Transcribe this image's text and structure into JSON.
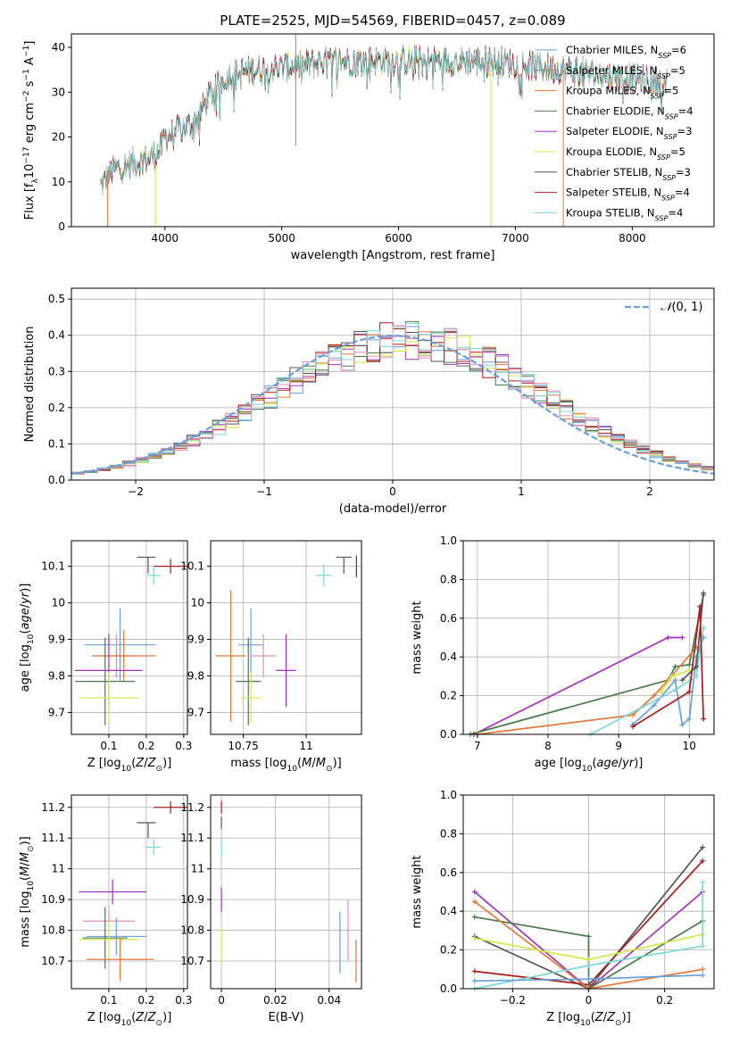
{
  "figure_title": "PLATE=2525, MJD=54569, FIBERID=0457, z=0.089",
  "colors": {
    "ch_miles": "#6a9fd8",
    "sa_miles": "#8a8a8a",
    "kr_miles": "#e07a3a",
    "ch_elodie": "#4c7a4c",
    "sa_elodie": "#9e35b5",
    "kr_elodie": "#d4e84a",
    "ch_stelib": "#555555",
    "sa_stelib": "#a51c1c",
    "kr_stelib": "#7fd6d6",
    "pink": "#e58fb6",
    "gaussian": "#6a9fd8"
  },
  "chart_data": [
    {
      "id": "spectrum",
      "type": "line",
      "xlabel": "wavelength [Angstrom, rest frame]",
      "ylabel": "Flux [f_λ10^-17 erg cm^-2 s^-1 A^-1]",
      "xlim": [
        3200,
        8700
      ],
      "ylim": [
        0,
        43
      ],
      "xticks": [
        4000,
        5000,
        6000,
        7000,
        8000
      ],
      "yticks": [
        0,
        10,
        20,
        30,
        40
      ],
      "grid": false,
      "legend_position": "top-right",
      "continuum": [
        [
          3450,
          9
        ],
        [
          3550,
          12.5
        ],
        [
          3700,
          14
        ],
        [
          3850,
          15
        ],
        [
          3960,
          17
        ],
        [
          4000,
          20
        ],
        [
          4150,
          22
        ],
        [
          4250,
          23
        ],
        [
          4400,
          30
        ],
        [
          4550,
          34
        ],
        [
          4750,
          35
        ],
        [
          5000,
          35.5
        ],
        [
          5200,
          36
        ],
        [
          5400,
          37
        ],
        [
          5600,
          37
        ],
        [
          5900,
          37
        ],
        [
          6200,
          37
        ],
        [
          6500,
          37
        ],
        [
          6800,
          37
        ],
        [
          7100,
          36
        ],
        [
          7400,
          35
        ],
        [
          7700,
          34
        ],
        [
          8000,
          33
        ],
        [
          8300,
          32
        ]
      ],
      "series": [
        {
          "name": "Chabrier MILES, N_SSP=6",
          "color_key": "ch_miles"
        },
        {
          "name": "Salpeter MILES, N_SSP=5",
          "color_key": "sa_miles"
        },
        {
          "name": "Kroupa MILES, N_SSP=5",
          "color_key": "kr_miles"
        },
        {
          "name": "Chabrier ELODIE, N_SSP=4",
          "color_key": "ch_elodie"
        },
        {
          "name": "Salpeter ELODIE, N_SSP=3",
          "color_key": "sa_elodie"
        },
        {
          "name": "Kroupa ELODIE, N_SSP=5",
          "color_key": "kr_elodie"
        },
        {
          "name": "Chabrier STELIB, N_SSP=3",
          "color_key": "ch_stelib"
        },
        {
          "name": "Salpeter STELIB, N_SSP=4",
          "color_key": "sa_stelib"
        },
        {
          "name": "Kroupa STELIB, N_SSP=4",
          "color_key": "kr_stelib"
        }
      ],
      "spikes": [
        {
          "x": 3510,
          "y0": 0,
          "y1": 12,
          "color_key": "kr_miles"
        },
        {
          "x": 3920,
          "y0": 0,
          "y1": 14,
          "color_key": "kr_elodie"
        },
        {
          "x": 5120,
          "y0": 18,
          "y1": 43,
          "color_key": "sa_miles"
        },
        {
          "x": 6790,
          "y0": 0,
          "y1": 37,
          "color_key": "kr_elodie"
        },
        {
          "x": 7410,
          "y0": 0,
          "y1": 35,
          "color_key": "kr_miles"
        }
      ]
    },
    {
      "id": "residuals",
      "type": "histogram",
      "xlabel": "(data-model)/error",
      "ylabel": "Normed distribution",
      "xlim": [
        -2.5,
        2.5
      ],
      "ylim": [
        0,
        0.53
      ],
      "xticks": [
        -2,
        -1,
        0,
        1,
        2
      ],
      "yticks": [
        0.0,
        0.1,
        0.2,
        0.3,
        0.4,
        0.5
      ],
      "grid": true,
      "legend_position": "top-right",
      "gaussian_label": "N(0,1)",
      "bins": 50,
      "series_color_keys": [
        "ch_miles",
        "kr_miles",
        "ch_elodie",
        "sa_elodie",
        "kr_elodie",
        "ch_stelib",
        "sa_stelib",
        "kr_stelib",
        "pink"
      ]
    },
    {
      "id": "age_vs_Z",
      "type": "errorbar",
      "xlabel": "Z [log10(Z/Z_sun)]",
      "ylabel": "age [log10(age/yr)]",
      "xlim": [
        0.0,
        0.31
      ],
      "ylim": [
        9.64,
        10.17
      ],
      "xticks": [
        0.1,
        0.2,
        0.3
      ],
      "yticks": [
        9.7,
        9.8,
        9.9,
        10.0,
        10.1
      ],
      "grid": true,
      "points": [
        {
          "x": 0.265,
          "y": 10.1,
          "xerr": 0.045,
          "yerr": 0.02,
          "color_key": "sa_stelib"
        },
        {
          "x": 0.205,
          "y": 10.125,
          "xerr": 0.0,
          "yerr": 0.0,
          "xlo": 0.175,
          "xhi": 0.225,
          "ylo": 10.08,
          "yhi": 10.125,
          "color_key": "ch_stelib"
        },
        {
          "x": 0.22,
          "y": 10.075,
          "xerr": 0.018,
          "yerr": 0.025,
          "color_key": "kr_stelib"
        },
        {
          "x": 0.13,
          "y": 9.885,
          "xerr": 0.095,
          "yerr": 0.1,
          "color_key": "ch_miles"
        },
        {
          "x": 0.12,
          "y": 9.855,
          "xerr": 0.05,
          "yerr": 0.06,
          "color_key": "pink"
        },
        {
          "x": 0.14,
          "y": 9.855,
          "xerr": 0.085,
          "yerr": 0.07,
          "color_key": "kr_miles"
        },
        {
          "x": 0.1,
          "y": 9.815,
          "xerr": 0.09,
          "yerr": 0.1,
          "color_key": "sa_elodie"
        },
        {
          "x": 0.09,
          "y": 9.785,
          "xerr": 0.08,
          "yerr": 0.12,
          "color_key": "ch_elodie"
        },
        {
          "x": 0.1,
          "y": 9.74,
          "xerr": 0.08,
          "yerr": 0.07,
          "color_key": "kr_elodie"
        }
      ]
    },
    {
      "id": "age_vs_mass",
      "type": "errorbar",
      "xlabel": "mass [log10(M/M_sun)]",
      "ylabel": "",
      "xlim": [
        10.62,
        11.22
      ],
      "ylim": [
        9.64,
        10.17
      ],
      "xticks": [
        10.75,
        11.0
      ],
      "yticks": [
        9.7,
        9.8,
        9.9,
        10.0,
        10.1
      ],
      "grid": true,
      "points": [
        {
          "x": 11.2,
          "y": 10.1,
          "xerr": 0.0,
          "yerr": 0.03,
          "color_key": "sa_stelib"
        },
        {
          "x": 11.15,
          "y": 10.125,
          "xerr": 0.03,
          "yerr": 0.0,
          "ylo": 10.08,
          "yhi": 10.125,
          "color_key": "ch_stelib"
        },
        {
          "x": 11.07,
          "y": 10.075,
          "xerr": 0.03,
          "yerr": 0.03,
          "color_key": "kr_stelib"
        },
        {
          "x": 10.78,
          "y": 9.885,
          "xerr": 0.05,
          "yerr": 0.1,
          "color_key": "ch_miles"
        },
        {
          "x": 10.83,
          "y": 9.855,
          "xerr": 0.05,
          "yerr": 0.06,
          "color_key": "pink"
        },
        {
          "x": 10.7,
          "y": 9.855,
          "xerr": 0.06,
          "yerr": 0.18,
          "color_key": "kr_miles"
        },
        {
          "x": 10.92,
          "y": 9.815,
          "xerr": 0.04,
          "yerr": 0.1,
          "color_key": "sa_elodie"
        },
        {
          "x": 10.77,
          "y": 9.785,
          "xerr": 0.05,
          "yerr": 0.12,
          "color_key": "ch_elodie"
        },
        {
          "x": 10.78,
          "y": 9.74,
          "xerr": 0.04,
          "yerr": 0.07,
          "color_key": "kr_elodie"
        }
      ]
    },
    {
      "id": "mw_vs_age",
      "type": "line",
      "xlabel": "age [log10(age/yr)]",
      "ylabel": "mass weight",
      "xlim": [
        6.8,
        10.35
      ],
      "ylim": [
        0,
        1.0
      ],
      "xticks": [
        7,
        8,
        9,
        10
      ],
      "yticks": [
        0.0,
        0.2,
        0.4,
        0.6,
        0.8,
        1.0
      ],
      "grid": true,
      "series": [
        {
          "color_key": "sa_elodie",
          "points": [
            [
              6.95,
              0.0
            ],
            [
              9.7,
              0.5
            ],
            [
              9.9,
              0.5
            ]
          ]
        },
        {
          "color_key": "ch_elodie",
          "points": [
            [
              6.9,
              0.0
            ],
            [
              9.7,
              0.28
            ],
            [
              9.8,
              0.35
            ],
            [
              10.0,
              0.36
            ],
            [
              10.2,
              0.72
            ]
          ]
        },
        {
          "color_key": "kr_miles",
          "points": [
            [
              7.0,
              0.0
            ],
            [
              9.2,
              0.1
            ],
            [
              9.5,
              0.2
            ],
            [
              9.7,
              0.28
            ],
            [
              10.1,
              0.45
            ]
          ]
        },
        {
          "color_key": "ch_miles",
          "points": [
            [
              9.2,
              0.05
            ],
            [
              9.5,
              0.15
            ],
            [
              9.8,
              0.28
            ],
            [
              9.9,
              0.05
            ],
            [
              10.0,
              0.08
            ],
            [
              10.1,
              0.4
            ],
            [
              10.2,
              0.5
            ]
          ]
        },
        {
          "color_key": "kr_stelib",
          "points": [
            [
              8.6,
              0.0
            ],
            [
              9.8,
              0.23
            ],
            [
              10.1,
              0.3
            ],
            [
              10.2,
              0.55
            ]
          ]
        },
        {
          "color_key": "kr_elodie",
          "points": [
            [
              9.6,
              0.22
            ],
            [
              9.75,
              0.3
            ],
            [
              10.0,
              0.33
            ]
          ]
        },
        {
          "color_key": "ch_stelib",
          "points": [
            [
              9.9,
              0.28
            ],
            [
              10.1,
              0.35
            ],
            [
              10.2,
              0.73
            ]
          ]
        },
        {
          "color_key": "sa_stelib",
          "points": [
            [
              9.2,
              0.04
            ],
            [
              10.0,
              0.22
            ],
            [
              10.15,
              0.66
            ],
            [
              10.2,
              0.08
            ]
          ]
        }
      ]
    },
    {
      "id": "mass_vs_Z",
      "type": "errorbar",
      "xlabel": "Z [log10(Z/Z_sun)]",
      "ylabel": "mass [log10(M/M_sun)]",
      "xlim": [
        0.0,
        0.31
      ],
      "ylim": [
        10.61,
        11.24
      ],
      "xticks": [
        0.1,
        0.2,
        0.3
      ],
      "yticks": [
        10.7,
        10.8,
        10.9,
        11.0,
        11.1,
        11.2
      ],
      "grid": true,
      "points": [
        {
          "x": 0.265,
          "y": 11.2,
          "xerr": 0.045,
          "yerr": 0.02,
          "color_key": "sa_stelib"
        },
        {
          "x": 0.205,
          "y": 11.15,
          "xlo": 0.175,
          "xhi": 0.225,
          "ylo": 11.1,
          "yhi": 11.15,
          "xerr": 0.0,
          "yerr": 0.0,
          "color_key": "ch_stelib"
        },
        {
          "x": 0.22,
          "y": 11.07,
          "xerr": 0.018,
          "yerr": 0.025,
          "color_key": "kr_stelib"
        },
        {
          "x": 0.11,
          "y": 10.925,
          "xerr": 0.09,
          "yerr": 0.04,
          "color_key": "sa_elodie"
        },
        {
          "x": 0.1,
          "y": 10.83,
          "xerr": 0.07,
          "yerr": 0.04,
          "color_key": "pink"
        },
        {
          "x": 0.12,
          "y": 10.78,
          "xerr": 0.08,
          "yerr": 0.06,
          "color_key": "ch_miles"
        },
        {
          "x": 0.09,
          "y": 10.775,
          "xerr": 0.06,
          "yerr": 0.1,
          "color_key": "ch_elodie"
        },
        {
          "x": 0.1,
          "y": 10.77,
          "xerr": 0.08,
          "yerr": 0.06,
          "color_key": "kr_elodie"
        },
        {
          "x": 0.13,
          "y": 10.705,
          "xerr": 0.09,
          "yerr": 0.07,
          "color_key": "kr_miles"
        }
      ]
    },
    {
      "id": "mass_vs_ebv",
      "type": "errorbar",
      "xlabel": "E(B-V)",
      "ylabel": "",
      "xlim": [
        -0.004,
        0.052
      ],
      "ylim": [
        10.61,
        11.24
      ],
      "xticks": [
        0.0,
        0.02,
        0.04
      ],
      "yticks": [
        10.7,
        10.8,
        10.9,
        11.0,
        11.1,
        11.2
      ],
      "grid": true,
      "points": [
        {
          "x": 0.0,
          "y": 11.2,
          "xerr": 0.0,
          "yerr": 0.02,
          "color_key": "sa_stelib"
        },
        {
          "x": 0.0,
          "y": 11.15,
          "xerr": 0.0,
          "yerr": 0.02,
          "color_key": "ch_stelib"
        },
        {
          "x": 0.0,
          "y": 11.07,
          "xerr": 0.0,
          "yerr": 0.03,
          "color_key": "kr_stelib"
        },
        {
          "x": 0.0,
          "y": 10.9,
          "xerr": 0.0,
          "yerr": 0.04,
          "color_key": "sa_elodie"
        },
        {
          "x": 0.0,
          "y": 10.75,
          "xerr": 0.0,
          "yerr": 0.06,
          "color_key": "kr_elodie"
        },
        {
          "x": 0.044,
          "y": 10.76,
          "xerr": 0.0,
          "yerr": 0.1,
          "color_key": "ch_miles"
        },
        {
          "x": 0.047,
          "y": 10.8,
          "xerr": 0.0,
          "yerr": 0.1,
          "color_key": "pink"
        },
        {
          "x": 0.05,
          "y": 10.7,
          "xerr": 0.0,
          "yerr": 0.07,
          "color_key": "kr_miles"
        }
      ]
    },
    {
      "id": "mw_vs_Z",
      "type": "line",
      "xlabel": "Z [log10(Z/Z_sun)]",
      "ylabel": "mass weight",
      "xlim": [
        -0.33,
        0.33
      ],
      "ylim": [
        0,
        1.0
      ],
      "xticks": [
        -0.2,
        0.0,
        0.2
      ],
      "yticks": [
        0.0,
        0.2,
        0.4,
        0.6,
        0.8,
        1.0
      ],
      "grid": true,
      "series": [
        {
          "color_key": "sa_elodie",
          "points": [
            [
              -0.3,
              0.5
            ],
            [
              0.0,
              0.0
            ],
            [
              0.3,
              0.5
            ]
          ]
        },
        {
          "color_key": "ch_stelib",
          "points": [
            [
              -0.3,
              0.27
            ],
            [
              0.0,
              0.0
            ],
            [
              0.3,
              0.73
            ]
          ]
        },
        {
          "color_key": "sa_stelib",
          "points": [
            [
              -0.3,
              0.09
            ],
            [
              0.0,
              0.02
            ],
            [
              0.3,
              0.66
            ]
          ]
        },
        {
          "color_key": "ch_elodie",
          "points": [
            [
              -0.3,
              0.37
            ],
            [
              0.0,
              0.27
            ],
            [
              0.0,
              0.0
            ],
            [
              0.3,
              0.35
            ]
          ]
        },
        {
          "color_key": "kr_miles",
          "points": [
            [
              -0.3,
              0.45
            ],
            [
              0.0,
              0.0
            ],
            [
              0.3,
              0.1
            ]
          ]
        },
        {
          "color_key": "kr_elodie",
          "points": [
            [
              -0.3,
              0.26
            ],
            [
              0.0,
              0.15
            ],
            [
              0.3,
              0.28
            ]
          ]
        },
        {
          "color_key": "kr_stelib",
          "points": [
            [
              -0.3,
              0.0
            ],
            [
              0.0,
              0.12
            ],
            [
              0.3,
              0.22
            ],
            [
              0.3,
              0.55
            ]
          ]
        },
        {
          "color_key": "ch_miles",
          "points": [
            [
              -0.3,
              0.04
            ],
            [
              0.0,
              0.05
            ],
            [
              0.3,
              0.07
            ]
          ]
        }
      ]
    }
  ]
}
